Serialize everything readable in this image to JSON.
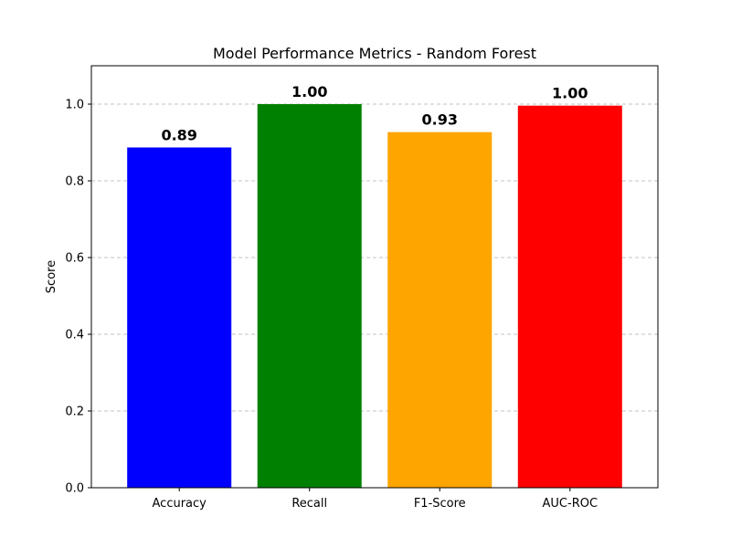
{
  "chart_data": {
    "type": "bar",
    "title": "Model Performance Metrics - Random Forest",
    "xlabel": "",
    "ylabel": "Score",
    "categories": [
      "Accuracy",
      "Recall",
      "F1-Score",
      "AUC-ROC"
    ],
    "values": [
      0.887,
      1.0,
      0.927,
      0.996
    ],
    "data_labels": [
      "0.89",
      "1.00",
      "0.93",
      "1.00"
    ],
    "colors": [
      "#0000ff",
      "#008000",
      "#ffa500",
      "#ff0000"
    ],
    "ylim": [
      0,
      1.1
    ],
    "yticks": [
      0.0,
      0.2,
      0.4,
      0.6,
      0.8,
      1.0
    ],
    "ytick_labels": [
      "0.0",
      "0.2",
      "0.4",
      "0.6",
      "0.8",
      "1.0"
    ],
    "grid": "y-dashed",
    "legend": "none"
  }
}
